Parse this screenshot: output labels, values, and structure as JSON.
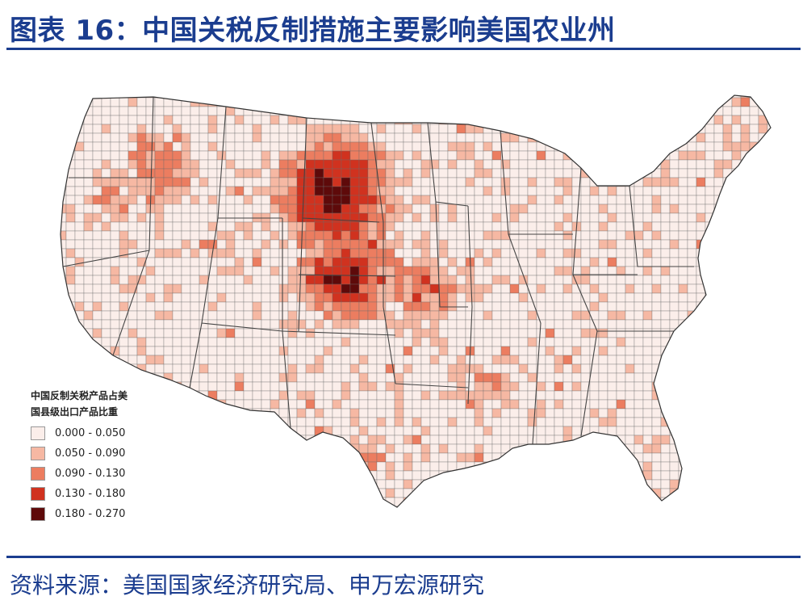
{
  "header": {
    "title": "图表 16：中国关税反制措施主要影响美国农业州"
  },
  "map": {
    "region": "United States (contiguous) counties",
    "legend": {
      "title_line1": "中国反制关税产品占美",
      "title_line2": "国县级出口产品比重",
      "items": [
        {
          "label": "0.000 - 0.050",
          "color": "#fbeeea"
        },
        {
          "label": "0.050 - 0.090",
          "color": "#f6b8a3"
        },
        {
          "label": "0.090 - 0.130",
          "color": "#ec7d60"
        },
        {
          "label": "0.130 - 0.180",
          "color": "#d0321f"
        },
        {
          "label": "0.180 - 0.270",
          "color": "#5e0a0a"
        }
      ]
    }
  },
  "footer": {
    "source": "资料来源：美国国家经济研究局、申万宏源研究"
  }
}
